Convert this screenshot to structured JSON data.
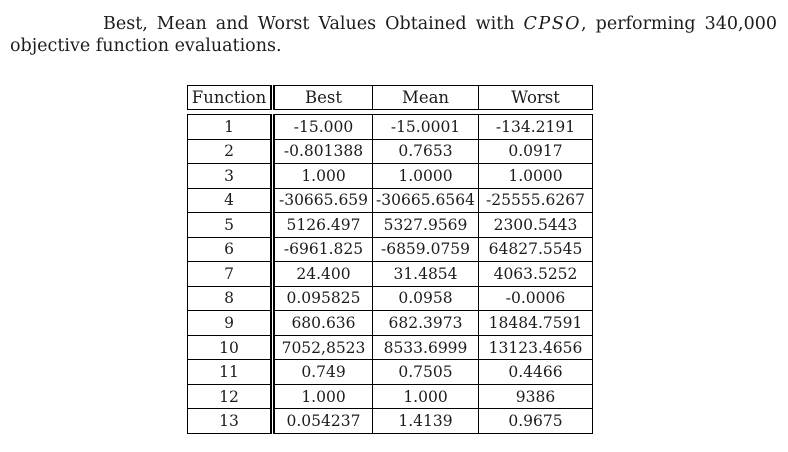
{
  "caption": {
    "line1_part1": "Best, Mean and Worst Values Obtained with",
    "line1_cpso": "CPSO",
    "line1_part2": ", performing 340,000",
    "line2": "objective function evaluations."
  },
  "table": {
    "headers": [
      "Function",
      "Best",
      "Mean",
      "Worst"
    ],
    "rows": [
      {
        "function": "1",
        "best": "-15.000",
        "mean": "-15.0001",
        "worst": "-134.2191"
      },
      {
        "function": "2",
        "best": "-0.801388",
        "mean": "0.7653",
        "worst": "0.0917"
      },
      {
        "function": "3",
        "best": "1.000",
        "mean": "1.0000",
        "worst": "1.0000"
      },
      {
        "function": "4",
        "best": "-30665.659",
        "mean": "-30665.6564",
        "worst": "-25555.6267"
      },
      {
        "function": "5",
        "best": "5126.497",
        "mean": "5327.9569",
        "worst": "2300.5443"
      },
      {
        "function": "6",
        "best": "-6961.825",
        "mean": "-6859.0759",
        "worst": "64827.5545"
      },
      {
        "function": "7",
        "best": "24.400",
        "mean": "31.4854",
        "worst": "4063.5252"
      },
      {
        "function": "8",
        "best": "0.095825",
        "mean": "0.0958",
        "worst": "-0.0006"
      },
      {
        "function": "9",
        "best": "680.636",
        "mean": "682.3973",
        "worst": "18484.7591"
      },
      {
        "function": "10",
        "best": "7052,8523",
        "mean": "8533.6999",
        "worst": "13123.4656"
      },
      {
        "function": "11",
        "best": "0.749",
        "mean": "0.7505",
        "worst": "0.4466"
      },
      {
        "function": "12",
        "best": "1.000",
        "mean": "1.000",
        "worst": "9386"
      },
      {
        "function": "13",
        "best": "0.054237",
        "mean": "1.4139",
        "worst": "0.9675"
      }
    ]
  },
  "colors": {
    "background": "#ffffff",
    "text": "#1c1c1c",
    "border": "#000000"
  }
}
